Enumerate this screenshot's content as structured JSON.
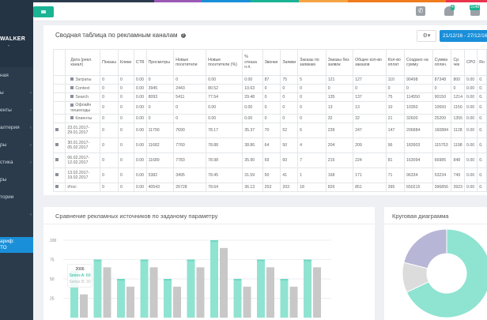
{
  "colors": {
    "accent": "#1ab394",
    "primary": "#1a8fd9",
    "sidebar": "#2b3b4c",
    "series_a": "#8fe3d1",
    "series_b": "#c8c8c8",
    "pie_purple": "#b8b6d6"
  },
  "stripe_colors": [
    "#2b3b4c",
    "#9b59b6",
    "#1a8fd9",
    "#1ab394",
    "#f5a442",
    "#f07c1e",
    "#e8344e"
  ],
  "sidebar": {
    "user_name": "WALKER",
    "user_sub": "-",
    "items": [
      {
        "label": "ная",
        "chevron": false
      },
      {
        "label": "ы",
        "chevron": true
      },
      {
        "label": "енты",
        "chevron": true
      },
      {
        "label": "алтерия",
        "chevron": true
      },
      {
        "label": "ры",
        "chevron": true
      },
      {
        "label": "стика",
        "chevron": true
      },
      {
        "label": "ры",
        "chevron": false
      },
      {
        "label": "тории",
        "chevron": false
      },
      {
        "label": "",
        "chevron": true
      }
    ],
    "tariff_line1": "ариф:",
    "tariff_line2": "ТО",
    "chevron": "‹"
  },
  "topbar": {
    "bell_badge": "4",
    "messages_badge": "3148",
    "phone_icon": "phone-icon",
    "bell_icon": "bell-icon",
    "mail_icon": "mail-icon"
  },
  "summary": {
    "title": "Сводная таблица по рекламным каналам",
    "help": "?",
    "gear": "⚙▾",
    "date_range": "21/12/16 - 27/12/16 ▾",
    "columns": [
      "Дата (рекл. канал)",
      "Показы",
      "Клики",
      "CTR",
      "Просмотры",
      "Новые посетители",
      "Новые посетители (%)",
      "% отказа н.п.",
      "Звонки",
      "Заявки",
      "Заказы по заявкам",
      "Заказы без заявок",
      "Общее кол-во заказов",
      "Кол-во оплат",
      "Создано на сумму",
      "Сумма оплач.",
      "Ср. чек",
      "CPO",
      "Ro"
    ],
    "rows": [
      {
        "sub": true,
        "cells": [
          "Затраты",
          "0",
          "0",
          "0.00",
          "0",
          "0",
          "0.00",
          "0.00",
          "87",
          "75",
          "5",
          "121",
          "127",
          "110",
          "90498",
          "87348",
          "800",
          "0.00",
          "0."
        ]
      },
      {
        "sub": true,
        "cells": [
          "Context",
          "0",
          "0",
          "0.00",
          "3945",
          "2443",
          "80.52",
          "10.63",
          "0",
          "0",
          "0",
          "0",
          "0",
          "0",
          "0",
          "0",
          "0",
          "0.00",
          "0."
        ]
      },
      {
        "sub": true,
        "cells": [
          "Search",
          "0",
          "0",
          "0.00",
          "8093",
          "5411",
          "77.54",
          "29.48",
          "0",
          "0",
          "0",
          "135",
          "137",
          "75",
          "114550",
          "90150",
          "1214",
          "0.00",
          "0."
        ]
      },
      {
        "sub": true,
        "cells": [
          "Офлайн пешеходы",
          "0",
          "0",
          "0.00",
          "0",
          "0",
          "0.00",
          "0.00",
          "0",
          "0",
          "0",
          "13",
          "13",
          "10",
          "10350",
          "10650",
          "1150",
          "0.00",
          "0."
        ]
      },
      {
        "sub": true,
        "cells": [
          "Клиенты",
          "0",
          "0",
          "0.00",
          "0",
          "0",
          "0.00",
          "0.00",
          "0",
          "0",
          "0",
          "32",
          "32",
          "21",
          "32600",
          "25200",
          "1355",
          "0.00",
          "0."
        ]
      },
      {
        "sub": false,
        "cells": [
          "23.01.2017-29.01.2017",
          "0",
          "0",
          "0.00",
          "11790",
          "7690",
          "78.17",
          "35.37",
          "70",
          "52",
          "6",
          "239",
          "247",
          "147",
          "206884",
          "160884",
          "1128",
          "0.00",
          "0."
        ]
      },
      {
        "sub": false,
        "cells": [
          "30.01.2017-05.02.2017",
          "0",
          "0",
          "0.00",
          "11682",
          "7760",
          "78.88",
          "38.86",
          "64",
          "50",
          "4",
          "204",
          "209",
          "96",
          "183903",
          "115753",
          "1198",
          "0.00",
          "0."
        ]
      },
      {
        "sub": false,
        "cells": [
          "06.02.2017-12.02.2017",
          "0",
          "0",
          "0.00",
          "11689",
          "7783",
          "78.98",
          "35.90",
          "69",
          "60",
          "7",
          "215",
          "224",
          "81",
          "163094",
          "66985",
          "848",
          "0.00",
          "0."
        ]
      },
      {
        "sub": false,
        "cells": [
          "13.02.2017-19.02.2017",
          "0",
          "0",
          "0.00",
          "5382",
          "3495",
          "78.45",
          "31.59",
          "50",
          "41",
          "1",
          "168",
          "171",
          "71",
          "96334",
          "53234",
          "749",
          "0.00",
          "0."
        ]
      },
      {
        "sub": false,
        "cells": [
          "Итог:",
          "0",
          "0",
          "0.00",
          "40543",
          "26728",
          "78.64",
          "36.13",
          "253",
          "203",
          "18",
          "826",
          "851",
          "395",
          "650215",
          "396856",
          "3923",
          "0.00",
          "0."
        ]
      }
    ]
  },
  "chart_data": [
    {
      "type": "bar",
      "title": "Сравнение рекламных источников по заданому параметру",
      "ylim": [
        0,
        100
      ],
      "yticks": [
        25,
        50,
        75,
        100
      ],
      "grid": true,
      "series": [
        {
          "name": "Series A",
          "values": [
            60,
            75,
            50,
            75,
            50,
            75,
            100,
            50,
            75,
            50,
            75
          ]
        },
        {
          "name": "Series B",
          "values": [
            30,
            65,
            40,
            65,
            40,
            65,
            90,
            40,
            65,
            40,
            65
          ]
        }
      ],
      "tooltip": {
        "title": "2006",
        "lines": [
          "Series A: 60",
          "Series B: 30"
        ]
      }
    },
    {
      "type": "pie",
      "title": "Круговая диаграмма",
      "donut": true,
      "values": [
        68,
        11,
        21
      ],
      "colors": [
        "#8fe3d1",
        "#dcdcdc",
        "#b8b6d6"
      ]
    }
  ]
}
